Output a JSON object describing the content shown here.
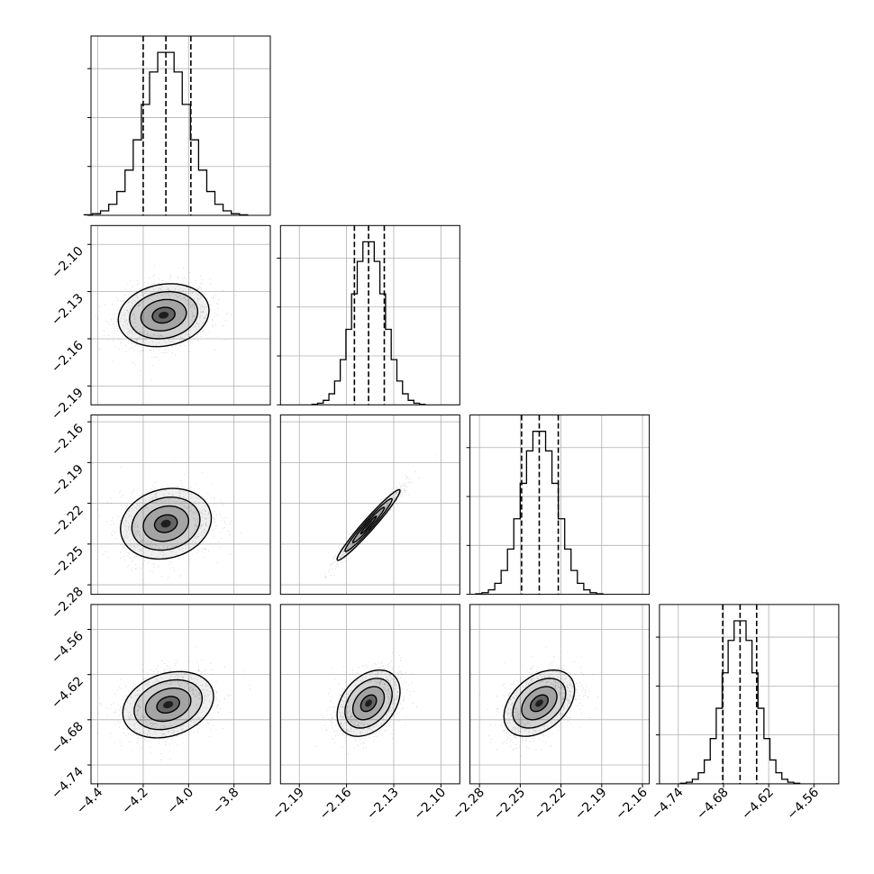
{
  "chart_data": {
    "type": "corner",
    "title": "",
    "colors": {
      "frame": "#000000",
      "grid": "#b0b0b0",
      "hist": "#000000",
      "quantile": "#000000",
      "points": "#555555",
      "density": "#000000"
    },
    "params": [
      {
        "range": [
          -4.43,
          -3.64
        ],
        "ticks": [
          -4.4,
          -4.2,
          -4.0,
          -3.8
        ],
        "tick_labels": [
          "−4.4",
          "−4.2",
          "−4.0",
          "−3.8"
        ],
        "quantiles": [
          -4.2,
          -4.1,
          -3.99
        ],
        "mean": -4.1,
        "sd": 0.1
      },
      {
        "range": [
          -2.202,
          -2.088
        ],
        "ticks": [
          -2.19,
          -2.16,
          -2.13,
          -2.1
        ],
        "tick_labels": [
          "−2.19",
          "−2.16",
          "−2.13",
          "−2.10"
        ],
        "quantiles": [
          -2.155,
          -2.146,
          -2.136
        ],
        "mean": -2.146,
        "sd": 0.01
      },
      {
        "range": [
          -2.287,
          -2.155
        ],
        "ticks": [
          -2.28,
          -2.25,
          -2.22,
          -2.19,
          -2.16
        ],
        "tick_labels": [
          "−2.28",
          "−2.25",
          "−2.22",
          "−2.19",
          "−2.16"
        ],
        "quantiles": [
          -2.249,
          -2.236,
          -2.222
        ],
        "mean": -2.236,
        "sd": 0.013
      },
      {
        "range": [
          -4.765,
          -4.527
        ],
        "ticks": [
          -4.74,
          -4.68,
          -4.62,
          -4.56
        ],
        "tick_labels": [
          "−4.74",
          "−4.68",
          "−4.62",
          "−4.56"
        ],
        "quantiles": [
          -4.681,
          -4.658,
          -4.636
        ],
        "mean": -4.658,
        "sd": 0.022
      }
    ],
    "hist_ylim": [
      0,
      1.1
    ],
    "hist_grid": [
      0.0,
      0.3,
      0.6,
      0.9
    ],
    "bins": 20,
    "pairs": [
      {
        "x": 0,
        "y": 1,
        "corr": 0.15,
        "center": [
          -4.11,
          -2.145
        ]
      },
      {
        "x": 0,
        "y": 2,
        "corr": 0.15,
        "center": [
          -4.1,
          -2.235
        ]
      },
      {
        "x": 1,
        "y": 2,
        "corr": 0.97,
        "center": [
          -2.146,
          -2.236
        ]
      },
      {
        "x": 0,
        "y": 3,
        "corr": 0.25,
        "center": [
          -4.09,
          -4.66
        ]
      },
      {
        "x": 1,
        "y": 3,
        "corr": 0.35,
        "center": [
          -2.146,
          -4.658
        ]
      },
      {
        "x": 2,
        "y": 3,
        "corr": 0.4,
        "center": [
          -2.236,
          -4.658
        ]
      }
    ],
    "contour_levels": [
      0.5,
      1.0,
      1.5,
      2.0
    ],
    "samples_per_panel": 1400
  }
}
